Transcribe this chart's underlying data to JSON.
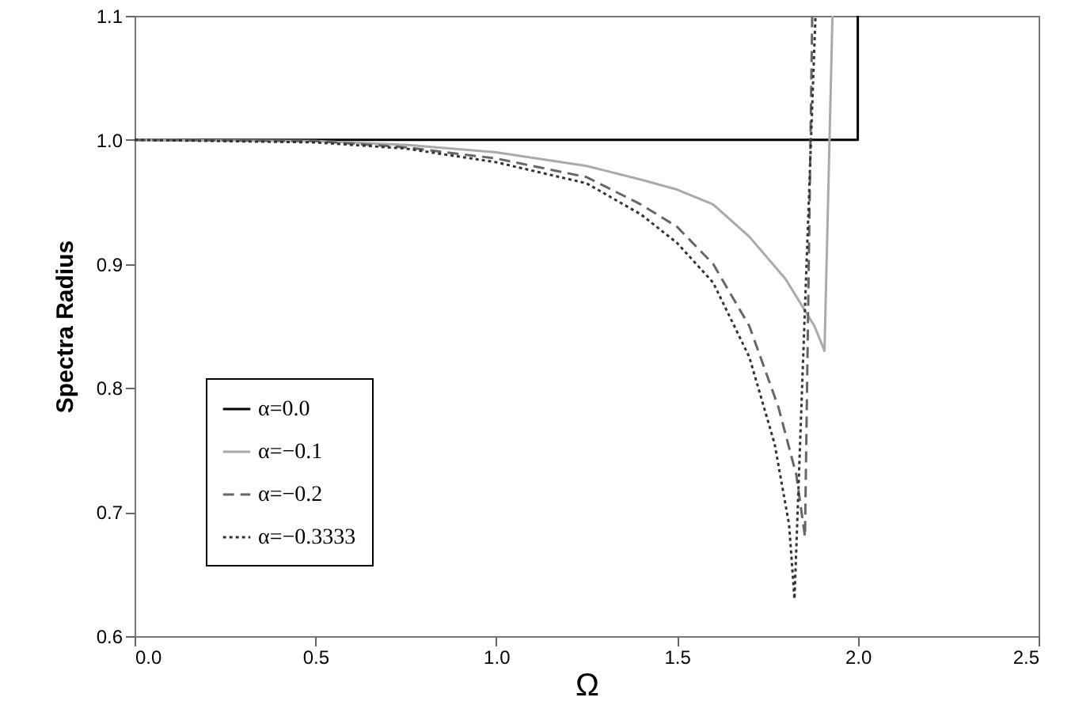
{
  "chart_data": {
    "type": "line",
    "xlabel": "Ω",
    "ylabel": "Spectra Radius",
    "xlim": [
      0,
      2.5
    ],
    "ylim": [
      0.6,
      1.1
    ],
    "xticks": [
      {
        "value": 0,
        "label": "0.0"
      },
      0.5,
      {
        "value": 1,
        "label": "1.0"
      },
      1.5,
      {
        "value": 2,
        "label": "2.0"
      },
      2.5
    ],
    "yticks": [
      0.6,
      0.7,
      0.8,
      0.9,
      {
        "value": 1,
        "label": "1.0"
      },
      1.1
    ],
    "grid": false,
    "legend": "bottom left",
    "marker": "none",
    "series": [
      {
        "name": "α=0.0",
        "color": "#000000",
        "line_style": "solid",
        "x": [
          0,
          2.0,
          2.0
        ],
        "values": [
          1,
          1,
          1.1
        ]
      },
      {
        "name": "α=−0.1",
        "color": "#aaaaaa",
        "line_style": "solid",
        "x": [
          0,
          0.5,
          0.75,
          1.0,
          1.25,
          1.4,
          1.5,
          1.6,
          1.7,
          1.8,
          1.88,
          1.908,
          1.93
        ],
        "values": [
          1,
          0.999,
          0.996,
          0.99,
          0.979,
          0.968,
          0.96,
          0.948,
          0.922,
          0.888,
          0.85,
          0.83,
          1.1
        ]
      },
      {
        "name": "α=−0.2",
        "color": "#666666",
        "line_style": "dashed",
        "x": [
          0,
          0.5,
          0.75,
          1.0,
          1.25,
          1.4,
          1.5,
          1.6,
          1.7,
          1.78,
          1.83,
          1.854,
          1.874
        ],
        "values": [
          1,
          0.999,
          0.994,
          0.985,
          0.97,
          0.948,
          0.93,
          0.9,
          0.85,
          0.785,
          0.73,
          0.68,
          1.1
        ]
      },
      {
        "name": "α=−0.3333",
        "color": "#333333",
        "line_style": "dotted",
        "x": [
          0,
          0.5,
          0.75,
          1.0,
          1.25,
          1.4,
          1.5,
          1.6,
          1.7,
          1.77,
          1.81,
          1.825,
          1.883
        ],
        "values": [
          1,
          0.998,
          0.993,
          0.982,
          0.965,
          0.94,
          0.917,
          0.885,
          0.825,
          0.755,
          0.69,
          0.63,
          1.1
        ]
      }
    ]
  }
}
